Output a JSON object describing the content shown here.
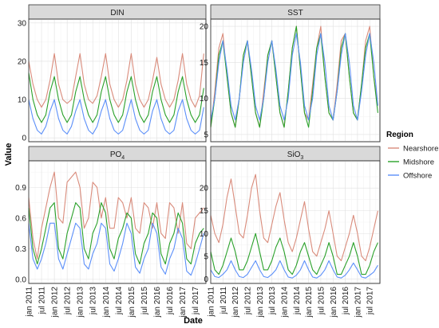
{
  "figure": {
    "xlabel": "Date",
    "ylabel": "Value",
    "legend_title": "Region"
  },
  "chart_data": {
    "type": "line",
    "facets": [
      "DIN",
      "SST",
      "PO4",
      "SiO3"
    ],
    "facet_labels": [
      {
        "text": "DIN",
        "sub": ""
      },
      {
        "text": "SST",
        "sub": ""
      },
      {
        "text": "PO",
        "sub": "4"
      },
      {
        "text": "SiO",
        "sub": "3"
      }
    ],
    "series_names": [
      "Nearshore",
      "Midshore",
      "Offshore"
    ],
    "colors": {
      "Nearshore": "#d98b7b",
      "Midshore": "#2aa12a",
      "Offshore": "#5b8ff9"
    },
    "x_tick_labels": [
      "jan 2011",
      "jul 2011",
      "jan 2012",
      "jul 2012",
      "jan 2013",
      "jul 2013",
      "jan 2014",
      "jul 2014",
      "jan 2015",
      "jul 2015",
      "jan 2016",
      "jul 2016",
      "jan 2017",
      "jul 2017"
    ],
    "x_range": [
      "2011-01",
      "2017-12"
    ],
    "panels": [
      {
        "facet": "DIN",
        "ylim": [
          -1,
          31
        ],
        "yticks": [
          0,
          10,
          20,
          30
        ],
        "x": [
          "2011-01",
          "2011-03",
          "2011-05",
          "2011-07",
          "2011-09",
          "2011-11",
          "2012-01",
          "2012-03",
          "2012-05",
          "2012-07",
          "2012-09",
          "2012-11",
          "2013-01",
          "2013-03",
          "2013-05",
          "2013-07",
          "2013-09",
          "2013-11",
          "2014-01",
          "2014-03",
          "2014-05",
          "2014-07",
          "2014-09",
          "2014-11",
          "2015-01",
          "2015-03",
          "2015-05",
          "2015-07",
          "2015-09",
          "2015-11",
          "2016-01",
          "2016-03",
          "2016-05",
          "2016-07",
          "2016-09",
          "2016-11",
          "2017-01",
          "2017-03",
          "2017-05",
          "2017-07",
          "2017-09",
          "2017-11"
        ],
        "series": [
          {
            "name": "Nearshore",
            "values": [
              20,
              14,
              10,
              8,
              10,
              15,
              22,
              14,
              10,
              9,
              10,
              16,
              22,
              14,
              10,
              9,
              11,
              16,
              22,
              14,
              10,
              8,
              10,
              15,
              22,
              14,
              10,
              8,
              10,
              15,
              21,
              14,
              10,
              8,
              10,
              15,
              22,
              14,
              10,
              8,
              11,
              22
            ]
          },
          {
            "name": "Midshore",
            "values": [
              17,
              10,
              6,
              4,
              6,
              12,
              16,
              10,
              6,
              4,
              6,
              12,
              16,
              10,
              6,
              4,
              6,
              12,
              16,
              10,
              6,
              4,
              6,
              12,
              16,
              10,
              6,
              4,
              6,
              12,
              16,
              10,
              6,
              4,
              6,
              12,
              16,
              10,
              6,
              4,
              6,
              13
            ]
          },
          {
            "name": "Offshore",
            "values": [
              10,
              5,
              2,
              1,
              3,
              7,
              10,
              5,
              2,
              1,
              3,
              7,
              10,
              5,
              2,
              1,
              3,
              7,
              10,
              5,
              2,
              1,
              2,
              6,
              10,
              5,
              2,
              1,
              2,
              7,
              10,
              5,
              2,
              1,
              2,
              7,
              10,
              5,
              2,
              1,
              2,
              8
            ]
          }
        ]
      },
      {
        "facet": "SST",
        "ylim": [
          4,
          21
        ],
        "yticks": [
          5,
          10,
          15,
          20
        ],
        "x": [
          "2011-01",
          "2011-03",
          "2011-05",
          "2011-07",
          "2011-09",
          "2011-11",
          "2012-01",
          "2012-03",
          "2012-05",
          "2012-07",
          "2012-09",
          "2012-11",
          "2013-01",
          "2013-03",
          "2013-05",
          "2013-07",
          "2013-09",
          "2013-11",
          "2014-01",
          "2014-03",
          "2014-05",
          "2014-07",
          "2014-09",
          "2014-11",
          "2015-01",
          "2015-03",
          "2015-05",
          "2015-07",
          "2015-09",
          "2015-11",
          "2016-01",
          "2016-03",
          "2016-05",
          "2016-07",
          "2016-09",
          "2016-11",
          "2017-01",
          "2017-03",
          "2017-05",
          "2017-07",
          "2017-09",
          "2017-11"
        ],
        "series": [
          {
            "name": "Nearshore",
            "values": [
              6,
              11,
              17,
              19,
              13,
              8,
              6,
              10,
              16,
              18,
              13,
              8,
              6,
              11,
              16,
              18,
              13,
              8,
              6,
              11,
              17,
              20,
              14,
              8,
              7,
              12,
              17,
              20,
              13,
              8,
              7,
              12,
              18,
              19,
              13,
              8,
              7,
              12,
              18,
              20,
              13,
              9
            ]
          },
          {
            "name": "Midshore",
            "values": [
              6,
              10,
              16,
              18,
              13,
              8,
              6,
              10,
              16,
              18,
              13,
              8,
              6,
              10,
              16,
              18,
              13,
              8,
              6,
              11,
              17,
              20,
              14,
              8,
              6,
              11,
              17,
              19,
              13,
              8,
              7,
              11,
              17,
              19,
              13,
              8,
              7,
              12,
              17,
              19,
              13,
              8
            ]
          },
          {
            "name": "Offshore",
            "values": [
              7,
              10,
              15,
              18,
              14,
              9,
              7,
              10,
              15,
              18,
              14,
              9,
              7,
              10,
              15,
              18,
              14,
              9,
              7,
              10,
              16,
              19,
              15,
              9,
              7,
              10,
              16,
              19,
              15,
              9,
              7,
              11,
              16,
              19,
              15,
              9,
              7,
              11,
              16,
              19,
              15,
              9
            ]
          }
        ]
      },
      {
        "facet": "PO4",
        "ylim": [
          -0.04,
          1.16
        ],
        "yticks": [
          0.0,
          0.3,
          0.6,
          0.9
        ],
        "x": [
          "2011-01",
          "2011-03",
          "2011-05",
          "2011-07",
          "2011-09",
          "2011-11",
          "2012-01",
          "2012-03",
          "2012-05",
          "2012-07",
          "2012-09",
          "2012-11",
          "2013-01",
          "2013-03",
          "2013-05",
          "2013-07",
          "2013-09",
          "2013-11",
          "2014-01",
          "2014-03",
          "2014-05",
          "2014-07",
          "2014-09",
          "2014-11",
          "2015-01",
          "2015-03",
          "2015-05",
          "2015-07",
          "2015-09",
          "2015-11",
          "2016-01",
          "2016-03",
          "2016-05",
          "2016-07",
          "2016-09",
          "2016-11",
          "2017-01",
          "2017-03",
          "2017-05",
          "2017-07",
          "2017-09",
          "2017-11"
        ],
        "series": [
          {
            "name": "Nearshore",
            "values": [
              0.8,
              0.4,
              0.2,
              0.5,
              0.7,
              0.9,
              1.05,
              0.6,
              0.55,
              0.95,
              1.0,
              1.05,
              0.9,
              0.5,
              0.6,
              0.95,
              0.9,
              0.6,
              0.8,
              0.5,
              0.5,
              0.8,
              0.75,
              0.6,
              0.8,
              0.5,
              0.45,
              0.75,
              0.7,
              0.5,
              0.75,
              0.45,
              0.4,
              0.75,
              0.7,
              0.45,
              0.75,
              0.35,
              0.3,
              0.6,
              0.65,
              0.7
            ]
          },
          {
            "name": "Midshore",
            "values": [
              0.7,
              0.3,
              0.15,
              0.3,
              0.5,
              0.7,
              0.75,
              0.3,
              0.2,
              0.45,
              0.6,
              0.75,
              0.7,
              0.3,
              0.2,
              0.45,
              0.55,
              0.75,
              0.65,
              0.3,
              0.2,
              0.4,
              0.5,
              0.65,
              0.6,
              0.25,
              0.15,
              0.35,
              0.45,
              0.65,
              0.6,
              0.25,
              0.15,
              0.35,
              0.45,
              0.65,
              0.55,
              0.2,
              0.15,
              0.35,
              0.45,
              0.5
            ]
          },
          {
            "name": "Offshore",
            "values": [
              0.55,
              0.2,
              0.1,
              0.2,
              0.35,
              0.55,
              0.55,
              0.2,
              0.1,
              0.25,
              0.4,
              0.55,
              0.5,
              0.15,
              0.1,
              0.25,
              0.35,
              0.55,
              0.5,
              0.15,
              0.08,
              0.2,
              0.35,
              0.55,
              0.45,
              0.12,
              0.06,
              0.2,
              0.3,
              0.55,
              0.45,
              0.12,
              0.05,
              0.2,
              0.3,
              0.5,
              0.4,
              0.08,
              0.04,
              0.15,
              0.3,
              0.45
            ]
          }
        ]
      },
      {
        "facet": "SiO3",
        "ylim": [
          -1,
          26
        ],
        "yticks": [
          0,
          5,
          10,
          15,
          20
        ],
        "x": [
          "2011-01",
          "2011-03",
          "2011-05",
          "2011-07",
          "2011-09",
          "2011-11",
          "2012-01",
          "2012-03",
          "2012-05",
          "2012-07",
          "2012-09",
          "2012-11",
          "2013-01",
          "2013-03",
          "2013-05",
          "2013-07",
          "2013-09",
          "2013-11",
          "2014-01",
          "2014-03",
          "2014-05",
          "2014-07",
          "2014-09",
          "2014-11",
          "2015-01",
          "2015-03",
          "2015-05",
          "2015-07",
          "2015-09",
          "2015-11",
          "2016-01",
          "2016-03",
          "2016-05",
          "2016-07",
          "2016-09",
          "2016-11",
          "2017-01",
          "2017-03",
          "2017-05",
          "2017-07",
          "2017-09",
          "2017-11"
        ],
        "series": [
          {
            "name": "Nearshore",
            "values": [
              14,
              10,
              8,
              12,
              18,
              22,
              16,
              10,
              9,
              14,
              20,
              23,
              15,
              9,
              8,
              12,
              16,
              19,
              13,
              8,
              6,
              9,
              13,
              17,
              11,
              6,
              5,
              8,
              11,
              15,
              10,
              5,
              4,
              7,
              10,
              14,
              10,
              5,
              4,
              7,
              11,
              15
            ]
          },
          {
            "name": "Midshore",
            "values": [
              6,
              2,
              1,
              3,
              6,
              9,
              6,
              2,
              2,
              4,
              7,
              10,
              6,
              2,
              2,
              4,
              7,
              9,
              6,
              2,
              1,
              3,
              6,
              8,
              5,
              2,
              1,
              3,
              5,
              8,
              5,
              1,
              1,
              3,
              5,
              8,
              5,
              1,
              1,
              3,
              6,
              8
            ]
          },
          {
            "name": "Offshore",
            "values": [
              2,
              0.5,
              0.3,
              1,
              2,
              4,
              2,
              0.5,
              0.3,
              1,
              2.5,
              4,
              2,
              0.5,
              0.3,
              1,
              2,
              4,
              2,
              0.4,
              0.2,
              0.8,
              2,
              4,
              2,
              0.4,
              0.2,
              0.8,
              2,
              4,
              2,
              0.4,
              0.2,
              0.8,
              2,
              3.5,
              2,
              0.4,
              0.2,
              0.8,
              1.5,
              3
            ]
          }
        ]
      }
    ],
    "legend_position": "right",
    "grid": true
  }
}
